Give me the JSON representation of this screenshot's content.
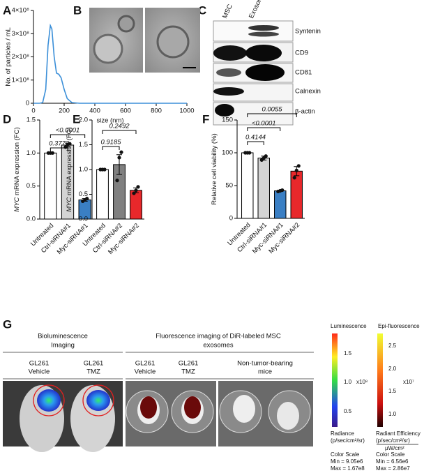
{
  "panel_labels": [
    "A",
    "B",
    "C",
    "D",
    "E",
    "F",
    "G"
  ],
  "chart_data": [
    {
      "type": "line",
      "ylabel": "No. of particles / mL",
      "xlabel": "size (nm)",
      "color": "#3b8fd8",
      "x": [
        0,
        40,
        60,
        80,
        95,
        110,
        120,
        135,
        150,
        165,
        180,
        200,
        220,
        250,
        300,
        1000
      ],
      "values": [
        0,
        0,
        3000000,
        60000000,
        250000000,
        335000000,
        320000000,
        200000000,
        130000000,
        125000000,
        110000000,
        60000000,
        20000000,
        3000000,
        0,
        0
      ],
      "xlim": [
        0,
        1000
      ],
      "xticks": [
        0,
        200,
        400,
        600,
        800,
        1000
      ],
      "ylim": [
        0,
        400000000
      ],
      "yticks": [
        0,
        {
          "value": 100000000,
          "label": "1×10⁸"
        },
        {
          "value": 200000000,
          "label": "2×10⁸"
        },
        {
          "value": 300000000,
          "label": "3×10⁸"
        },
        {
          "value": 400000000,
          "label": "4×10⁸"
        }
      ]
    },
    {
      "type": "bar",
      "ylabel_gene": "MYC",
      "ylabel": "mRNA expression (FC)",
      "categories": [
        "Untreated",
        "Ctrl-siRNA#1",
        "Myc-siRNA#1"
      ],
      "values": [
        1.0,
        1.12,
        0.29
      ],
      "errors": [
        0,
        0.03,
        0.02
      ],
      "points": [
        [
          1,
          1,
          1
        ],
        [
          1.09,
          1.13,
          1.14
        ],
        [
          0.27,
          0.29,
          0.31
        ]
      ],
      "colors": [
        "#ffffff",
        "#d4d4d4",
        "#3a7fc4"
      ],
      "ylim": [
        0,
        1.5
      ],
      "yticks": [
        {
          "value": 0,
          "label": "0.0"
        },
        0.5,
        {
          "value": 1,
          "label": "1.0"
        },
        1.5
      ],
      "annotations": [
        "0.3772",
        "<0.0001"
      ]
    },
    {
      "type": "bar",
      "ylabel_gene": "MYC",
      "ylabel": "mRNA expression (FC)",
      "categories": [
        "Untreated",
        "Ctrl-siRNA#2",
        "Myc-siRNA#2"
      ],
      "values": [
        1.0,
        1.1,
        0.58
      ],
      "errors": [
        0,
        0.2,
        0.05
      ],
      "points": [
        [
          1,
          1,
          1
        ],
        [
          0.78,
          1.24,
          1.35
        ],
        [
          0.52,
          0.58,
          0.65
        ]
      ],
      "colors": [
        "#ffffff",
        "#808080",
        "#e8282b"
      ],
      "ylim": [
        0,
        2
      ],
      "yticks": [
        {
          "value": 0,
          "label": "0.0"
        },
        0.5,
        {
          "value": 1,
          "label": "1.0"
        },
        1.5,
        {
          "value": 2,
          "label": "2.0"
        }
      ],
      "annotations": [
        "0.9185",
        "0.2492"
      ]
    },
    {
      "type": "bar",
      "ylabel": "Relative cell viability (%)",
      "categories": [
        "Untreated",
        "Ctrl-siRNA#1",
        "Myc-siRNA#1",
        "Myc-siRNA#2"
      ],
      "values": [
        100,
        92,
        42,
        72
      ],
      "errors": [
        0,
        3,
        1,
        7
      ],
      "points": [
        [
          100,
          100,
          100
        ],
        [
          89,
          92,
          95
        ],
        [
          41,
          42,
          43
        ],
        [
          62,
          73,
          80
        ]
      ],
      "colors": [
        "#ffffff",
        "#d4d4d4",
        "#3a7fc4",
        "#e8282b"
      ],
      "ylim": [
        0,
        150
      ],
      "yticks": [
        0,
        50,
        100,
        150
      ],
      "annotations": [
        "0.4144",
        "<0.0001",
        "0.0055"
      ]
    }
  ],
  "blot": {
    "lanes": [
      "MSC",
      "Exosomes"
    ],
    "proteins": [
      "Syntenin",
      "CD9",
      "CD81",
      "Calnexin",
      "β-actin"
    ]
  },
  "imaging": {
    "groups": [
      [
        "Bioluminescence",
        "Imaging"
      ],
      [
        "Fluorescence imaging of DiR-labeled MSC",
        "exosomes"
      ]
    ],
    "conditions": [
      [
        "GL261",
        "Vehicle"
      ],
      [
        "GL261",
        "TMZ"
      ],
      [
        "GL261",
        "Vehicle"
      ],
      [
        "GL261",
        "TMZ"
      ],
      [
        "Non-tumor-bearing",
        "mice"
      ]
    ],
    "luminescence": {
      "title": "Luminescence",
      "ticks": [
        "1.5",
        "1.0",
        "0.5"
      ],
      "multiplier": "x10⁸",
      "unit": [
        "Radiance",
        "(p/sec/cm²/sr)"
      ],
      "scale": [
        "Color Scale",
        "Min = 9.05e6",
        "Max = 1.67e8"
      ]
    },
    "fluorescence": {
      "title": "Epi-fluorescence",
      "ticks": [
        "2.5",
        "2.0",
        "1.5",
        "1.0"
      ],
      "multiplier": "x10⁷",
      "unit": [
        "Radiant Efficiency",
        "(p/sec/cm²/sr)",
        "µW/cm²"
      ],
      "scale": [
        "Color Scale",
        "Min = 6.56e6",
        "Max = 2.86e7"
      ]
    }
  }
}
